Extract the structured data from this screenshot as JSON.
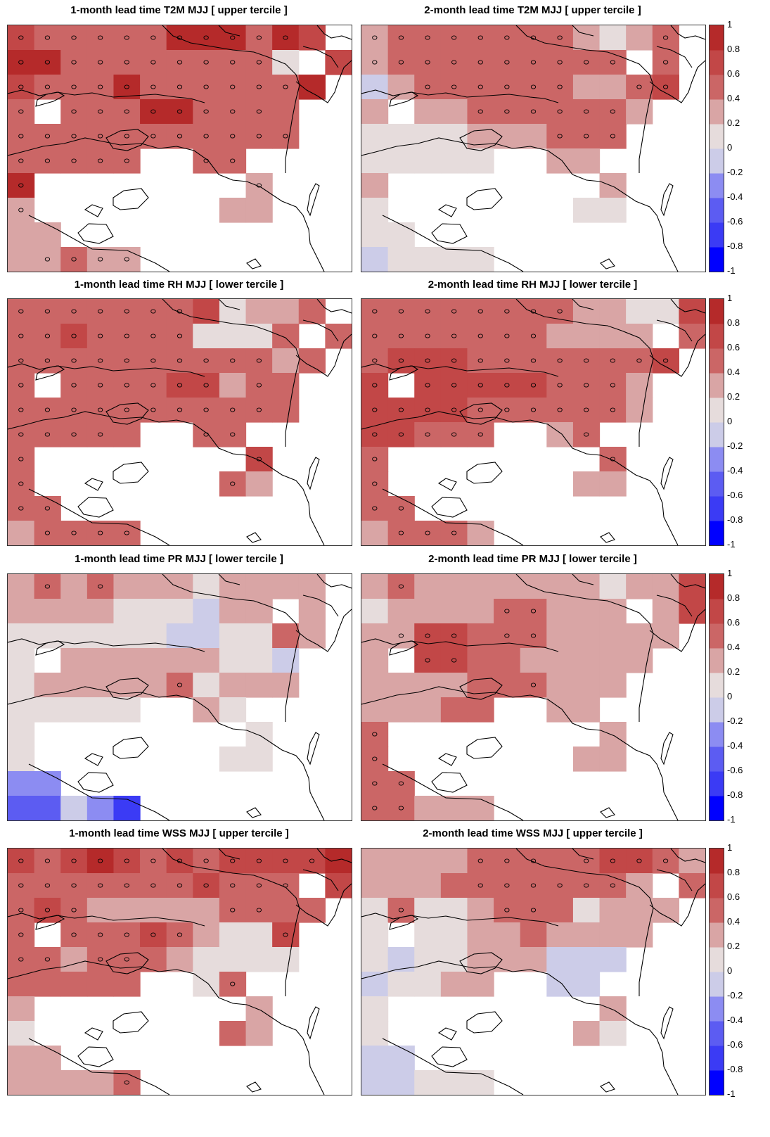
{
  "chart_data": [
    {
      "type": "heatmap",
      "title": "1-month lead time T2M MJJ [ upper tercile ]",
      "grid": [
        "4 3 3 3 3 3 5 5 5 3 5 4 .",
        "5 5 3 3 3 3 3 3 3 3 1 . 4",
        "4 3 3 3 5 3 3 3 3 3 3 5 .",
        "3 . 3 3 3 5 5 3 3 3 3 . .",
        "3 3 3 3 3 3 3 3 3 3 3 . .",
        "3 3 3 3 3 . . 3 3 . . . .",
        "5 . . . . . . . . 2 . . .",
        "2 . . . . . . . 2 2 . . .",
        "2 2 . . . . . . . . . . .",
        "2 2 3 2 2 . . . . . . . ."
      ],
      "dots": [
        "1 1 1 1 1 1 1 1 1 1 1 0 0",
        "1 1 1 1 1 1 1 1 1 1 0 0 0",
        "1 1 1 1 1 1 1 1 1 1 1 0 0",
        "1 0 1 1 1 1 1 1 1 1 0 0 0",
        "1 1 1 1 1 1 1 1 1 1 1 0 0",
        "1 1 1 1 1 0 0 1 1 0 0 0 0",
        "1 0 0 0 0 0 0 0 0 1 0 0 0",
        "1 0 0 0 0 0 0 0 0 0 0 0 0",
        "0 0 0 0 0 0 0 0 0 0 0 0 0",
        "0 1 1 1 1 0 0 0 0 0 0 0 0"
      ]
    },
    {
      "type": "heatmap",
      "title": "2-month lead time T2M MJJ [ upper tercile ]",
      "grid": [
        "2 3 3 3 3 3 3 3 2 1 2 3 .",
        "2 3 3 3 3 3 3 3 3 3 . 3 .",
        "-1 2 3 3 3 3 3 3 2 2 3 4 .",
        "2 . 2 2 3 3 3 3 3 3 2 . .",
        "1 1 1 1 2 2 2 3 3 3 . . .",
        "1 1 1 1 1 . . 2 2 . . . .",
        "2 . . . . . . . . 2 . . .",
        "1 . . . . . . . 1 1 . . .",
        "1 1 . . . . . . . . . . .",
        "-1 1 1 1 1 . . . . . . . ."
      ],
      "dots": [
        "1 1 1 1 1 1 1 1 0 0 0 1 0",
        "1 1 1 1 1 1 1 1 1 1 0 1 0",
        "0 0 1 1 1 1 1 1 0 0 1 1 0",
        "0 0 0 0 1 1 1 1 1 1 0 0 0",
        "0 0 0 0 0 0 0 1 1 1 0 0 0",
        "0 0 0 0 0 0 0 0 0 0 0 0 0",
        "0 0 0 0 0 0 0 0 0 0 0 0 0",
        "0 0 0 0 0 0 0 0 0 0 0 0 0",
        "0 0 0 0 0 0 0 0 0 0 0 0 0",
        "0 0 0 0 0 0 0 0 0 0 0 0 0"
      ]
    },
    {
      "type": "heatmap",
      "title": "1-month lead time RH MJJ [ lower tercile ]",
      "grid": [
        "3 3 3 3 3 3 3 4 1 2 2 3 .",
        "3 3 4 3 3 3 3 1 1 1 3 . 3",
        "3 3 3 3 3 3 3 3 3 3 2 3 .",
        "3 . 3 3 3 3 4 4 2 3 3 . .",
        "3 3 3 3 3 3 3 3 3 3 3 . .",
        "3 3 3 3 3 . . 3 3 . . . .",
        "3 . . . . . . . . 4 . . .",
        "3 . . . . . . . 3 2 . . .",
        "3 3 . . . . . . . . . . .",
        "2 3 3 3 3 . . . . . . . ."
      ],
      "dots": [
        "1 1 1 1 1 1 1 0 0 0 0 0 0",
        "1 1 1 1 1 1 1 0 0 0 0 0 0",
        "1 1 1 1 1 1 1 1 1 1 0 0 0",
        "1 0 1 1 1 1 1 1 0 1 0 0 0",
        "1 1 1 1 1 1 1 1 1 1 0 0 0",
        "1 1 1 1 0 0 0 1 1 0 0 0 0",
        "1 0 0 0 0 0 0 0 0 1 0 0 0",
        "1 0 0 0 0 0 0 0 1 0 0 0 0",
        "1 1 0 0 0 0 0 0 0 0 0 0 0",
        "0 1 1 1 1 0 0 0 0 0 0 0 0"
      ]
    },
    {
      "type": "heatmap",
      "title": "2-month lead time RH MJJ [ lower tercile ]",
      "grid": [
        "3 3 3 3 3 3 3 3 2 2 1 1 4",
        "3 3 3 3 3 3 3 2 2 2 2 . 3",
        "3 4 4 4 3 3 3 3 3 3 3 4 .",
        "4 . 4 4 4 4 4 3 3 3 2 . .",
        "4 4 4 4 3 3 3 3 3 3 2 . .",
        "4 4 3 3 3 . . 2 3 . . . .",
        "3 . . . . . . . . 3 . . .",
        "3 . . . . . . . 2 2 . . .",
        "3 3 . . . . . . . . . . .",
        "2 3 3 3 2 . . . . . . . ."
      ],
      "dots": [
        "1 1 1 1 1 1 1 1 0 0 0 0 0",
        "1 1 1 1 1 1 1 0 0 0 0 0 0",
        "1 1 1 1 1 1 1 1 1 1 1 1 0",
        "1 0 1 1 1 1 1 1 1 1 0 0 0",
        "1 1 1 1 1 1 1 1 1 1 0 0 0",
        "1 1 1 1 1 0 0 0 1 0 0 0 0",
        "1 0 0 0 0 0 0 0 0 1 0 0 0",
        "1 0 0 0 0 0 0 0 0 0 0 0 0",
        "1 1 0 0 0 0 0 0 0 0 0 0 0",
        "0 1 1 1 0 0 0 0 0 0 0 0 0"
      ]
    },
    {
      "type": "heatmap",
      "title": "1-month lead time PR MJJ [ lower tercile ]",
      "grid": [
        "2 3 2 3 2 2 2 1 2 2 2 2 .",
        "2 2 2 2 1 1 1 -1 2 2 . 2 .",
        "1 1 1 1 1 1 -1 -1 1 1 3 2 .",
        "1 . 2 2 2 2 2 2 1 1 -1 . .",
        "1 2 2 2 2 2 3 1 2 2 2 . .",
        "1 1 1 1 1 . . 2 1 . . . .",
        "1 . . . . . . . . 1 . . .",
        "1 . . . . . . . 1 1 . . .",
        "-3 -3 . . . . . . . . . . .",
        "-4 -4 -1 -3 -5 . . . . . . . ."
      ],
      "dots": [
        "0 1 0 1 0 0 0 0 0 0 0 0 0",
        "0 0 0 0 0 0 0 0 0 0 0 0 0",
        "0 0 0 0 0 0 0 0 0 0 0 0 0",
        "0 0 0 0 0 0 0 0 0 0 0 0 0",
        "0 0 0 0 0 0 1 0 0 0 0 0 0",
        "0 0 0 0 0 0 0 0 0 0 0 0 0",
        "0 0 0 0 0 0 0 0 0 0 0 0 0",
        "0 0 0 0 0 0 0 0 0 0 0 0 0",
        "0 0 0 0 0 0 0 0 0 0 0 0 0",
        "0 0 0 0 0 0 0 0 0 0 0 0 0"
      ]
    },
    {
      "type": "heatmap",
      "title": "2-month lead time PR MJJ [ lower tercile ]",
      "grid": [
        "2 3 2 2 2 2 2 2 2 1 2 2 4",
        "1 2 2 2 2 3 3 2 2 2 . 2 4",
        "2 2 4 4 3 3 3 2 2 2 2 2 .",
        "2 . 4 4 3 3 2 2 2 2 2 . .",
        "2 2 2 2 3 3 3 2 2 2 . . .",
        "2 2 2 3 3 . . 2 2 . . . .",
        "3 . . . . . . . . 2 . . .",
        "3 . . . . . . . 2 2 . . .",
        "3 3 . . . . . . . . . . .",
        "3 3 2 2 2 . . . . . . . ."
      ],
      "dots": [
        "0 1 0 0 0 0 0 0 0 0 0 0 0",
        "0 0 0 0 0 1 1 0 0 0 0 0 0",
        "0 1 1 1 0 1 1 0 0 0 0 0 0",
        "0 0 1 1 0 0 0 0 0 0 0 0 0",
        "0 0 0 0 0 0 1 0 0 0 0 0 0",
        "0 0 0 0 0 0 0 0 0 0 0 0 0",
        "1 0 0 0 0 0 0 0 0 0 0 0 0",
        "1 0 0 0 0 0 0 0 0 0 0 0 0",
        "1 1 0 0 0 0 0 0 0 0 0 0 0",
        "1 1 0 0 0 0 0 0 0 0 0 0 0"
      ]
    },
    {
      "type": "heatmap",
      "title": "1-month lead time WSS MJJ [ upper tercile ]",
      "grid": [
        "4 3 4 5 4 3 4 3 4 4 4 4 5",
        "3 3 3 3 3 3 3 4 3 3 3 . 4",
        "3 4 3 2 2 2 2 2 3 3 3 3 .",
        "3 . 3 3 3 4 3 2 1 1 4 . .",
        "3 3 2 3 3 3 2 1 1 1 1 . .",
        "3 3 3 3 3 . . 1 3 . . . .",
        "2 . . . . . . . . 2 . . .",
        "1 . . . . . . . 3 2 . . .",
        "2 2 . . . . . . . . . . .",
        "2 2 2 2 3 . . . . . . . ."
      ],
      "dots": [
        "1 1 1 1 1 1 1 1 1 1 1 1 0",
        "1 1 1 1 1 1 1 1 1 1 1 0 0",
        "1 1 1 0 0 0 0 0 1 1 0 0 0",
        "1 0 1 1 1 1 1 0 0 0 1 0 0",
        "1 1 0 1 1 0 0 0 0 0 0 0 0",
        "0 0 0 0 0 0 0 0 1 0 0 0 0",
        "0 0 0 0 0 0 0 0 0 0 0 0 0",
        "0 0 0 0 0 0 0 0 0 0 0 0 0",
        "0 0 0 0 0 0 0 0 0 0 0 0 0",
        "0 0 0 0 1 0 0 0 0 0 0 0 0"
      ]
    },
    {
      "type": "heatmap",
      "title": "2-month lead time WSS MJJ [ upper tercile ]",
      "grid": [
        "2 2 2 2 3 3 3 3 3 4 4 3 2",
        "2 2 2 3 3 3 3 3 3 3 2 . 3",
        "1 3 1 1 2 3 3 3 1 2 2 2 .",
        "1 . 1 1 2 2 3 2 2 2 2 . .",
        "1 -1 1 1 2 2 2 -1 -1 -1 . . .",
        "-1 1 1 2 2 . . -1 -1 . . . .",
        "1 . . . . . . . . 2 . . .",
        "1 . . . . . . . 2 1 . . .",
        "-1 -1 . . . . . . . . . . .",
        "-1 -1 1 1 1 . . . . . . . ."
      ],
      "dots": [
        "0 0 0 0 1 1 1 0 1 1 1 1 0",
        "0 0 0 0 1 1 1 1 1 1 0 0 0",
        "0 1 0 0 0 1 1 0 0 0 0 0 0",
        "0 0 0 0 0 0 0 0 0 0 0 0 0",
        "0 0 0 0 0 0 0 0 0 0 0 0 0",
        "0 0 0 0 0 0 0 0 0 0 0 0 0",
        "0 0 0 0 0 0 0 0 0 0 0 0 0",
        "0 0 0 0 0 0 0 0 0 0 0 0 0",
        "0 0 0 0 0 0 0 0 0 0 0 0 0",
        "0 0 0 0 0 0 0 0 0 0 0 0 0"
      ]
    }
  ],
  "colorbar": {
    "ticks": [
      "1",
      "0.8",
      "0.6",
      "0.4",
      "0.2",
      "0",
      "-0.2",
      "-0.4",
      "-0.6",
      "-0.8",
      "-1"
    ],
    "colors": {
      "5": "#b52a2a",
      "4": "#c24747",
      "3": "#cb6666",
      "2": "#d9a5a5",
      "1": "#e6dcdc",
      "-1": "#cccce8",
      "-2": "#aaaaee",
      "-3": "#8c8cf2",
      "-4": "#5c5cf2",
      "-5": "#3b3bf5"
    },
    "scale": [
      "#0000ff",
      "#3b3bf5",
      "#5c5cf2",
      "#8c8cf2",
      "#cccce8",
      "#e6dcdc",
      "#d9a5a5",
      "#cb6666",
      "#c24747",
      "#b52a2a"
    ]
  },
  "coastline_color": "#000000"
}
